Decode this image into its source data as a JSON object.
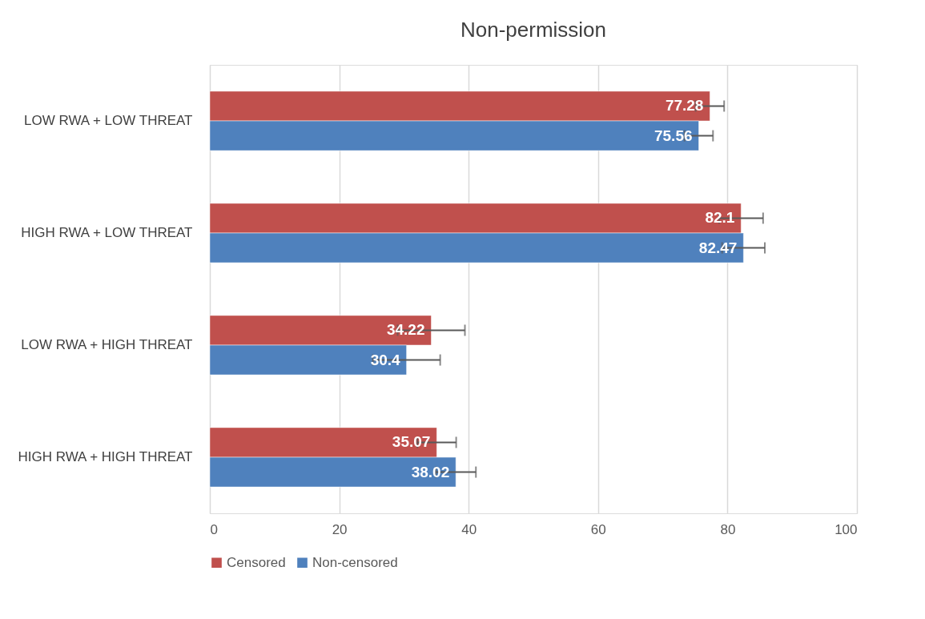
{
  "chart_data": {
    "type": "bar",
    "orientation": "horizontal",
    "title": "Non-permission",
    "categories": [
      "LOW RWA + LOW THREAT",
      "HIGH RWA + LOW THREAT",
      "LOW RWA + HIGH THREAT",
      "HIGH RWA + HIGH THREAT"
    ],
    "series": [
      {
        "name": "Censored",
        "color": "#c0504d",
        "values": [
          77.28,
          82.1,
          34.22,
          35.07
        ],
        "errors": [
          2.2,
          3.4,
          5.2,
          3.0
        ]
      },
      {
        "name": "Non-censored",
        "color": "#4f81bd",
        "values": [
          75.56,
          82.47,
          30.4,
          38.02
        ],
        "errors": [
          2.2,
          3.3,
          5.2,
          3.1
        ]
      }
    ],
    "xlim": [
      0,
      100
    ],
    "xticks": [
      0,
      20,
      40,
      60,
      80,
      100
    ],
    "grid": "x",
    "legend": "bottom",
    "data_labels": true
  }
}
